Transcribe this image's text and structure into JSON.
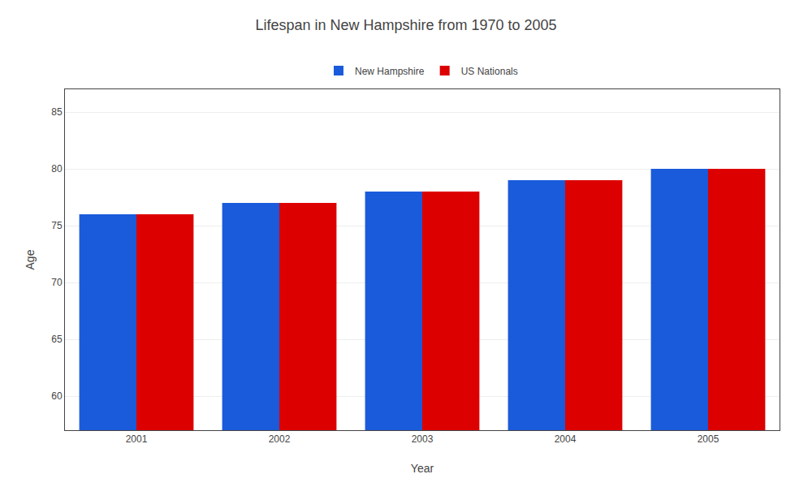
{
  "chart_data": {
    "type": "bar",
    "title": "Lifespan in New Hampshire from 1970 to 2005",
    "xlabel": "Year",
    "ylabel": "Age",
    "categories": [
      "2001",
      "2002",
      "2003",
      "2004",
      "2005"
    ],
    "series": [
      {
        "name": "New Hampshire",
        "color": "#1a5bdb",
        "values": [
          76,
          77,
          78,
          79,
          80
        ]
      },
      {
        "name": "US Nationals",
        "color": "#dd0000",
        "values": [
          76,
          77,
          78,
          79,
          80
        ]
      }
    ],
    "ylim": [
      57,
      87
    ],
    "yticks": [
      60,
      65,
      70,
      75,
      80,
      85
    ],
    "grid": true,
    "legend": "top"
  }
}
